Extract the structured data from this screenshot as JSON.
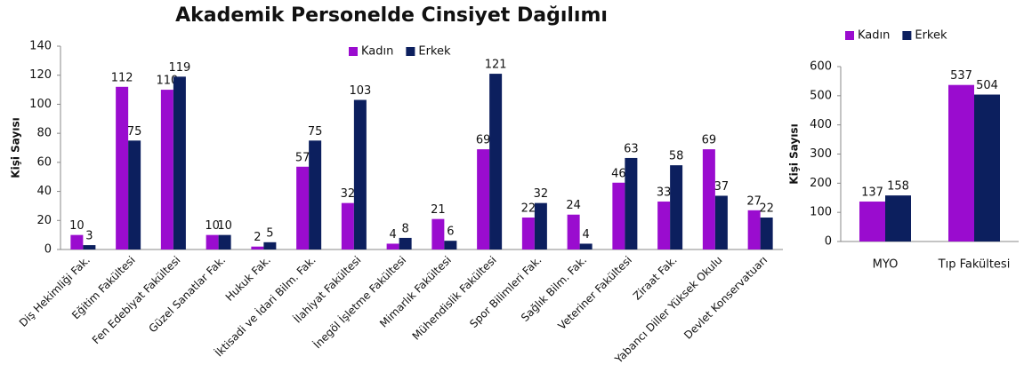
{
  "chart_data": [
    {
      "type": "bar",
      "title": "Akademik Personelde Cinsiyet Dağılımı",
      "ylabel": "Kişi Sayısı",
      "categories": [
        "Diş Hekimliği Fak.",
        "Eğitim Fakültesi",
        "Fen Edebiyat Fakültesi",
        "Güzel Sanatlar Fak.",
        "Hukuk Fak.",
        "İktisadi ve İdari Bilm. Fak.",
        "İlahiyat Fakültesi",
        "İnegöl İşletme Fakültesi",
        "Mimarlık Fakültesi",
        "Mühendislik Fakültesi",
        "Spor Bilimleri Fak.",
        "Sağlık Bilm. Fak.",
        "Veteriner Fakültesi",
        "Ziraat Fak.",
        "Yabancı Diller Yüksek Okulu",
        "Devlet Konservatuarı"
      ],
      "series": [
        {
          "name": "Kadın",
          "color": "#9a0ccf",
          "values": [
            10,
            112,
            110,
            10,
            2,
            57,
            32,
            4,
            21,
            69,
            22,
            24,
            46,
            33,
            69,
            27
          ]
        },
        {
          "name": "Erkek",
          "color": "#0c1f5e",
          "values": [
            3,
            75,
            119,
            10,
            5,
            75,
            103,
            8,
            6,
            121,
            32,
            4,
            63,
            58,
            37,
            22
          ]
        }
      ],
      "ylim": [
        0,
        140
      ],
      "yticks": [
        0,
        20,
        40,
        60,
        80,
        100,
        120,
        140
      ],
      "legend": "top"
    },
    {
      "type": "bar",
      "ylabel": "Kişi Sayısı",
      "categories": [
        "MYO",
        "Tıp Fakültesi"
      ],
      "series": [
        {
          "name": "Kadın",
          "color": "#9a0ccf",
          "values": [
            137,
            537
          ]
        },
        {
          "name": "Erkek",
          "color": "#0c1f5e",
          "values": [
            158,
            504
          ]
        }
      ],
      "ylim": [
        0,
        600
      ],
      "yticks": [
        0,
        100,
        200,
        300,
        400,
        500,
        600
      ],
      "legend": "top left"
    }
  ]
}
